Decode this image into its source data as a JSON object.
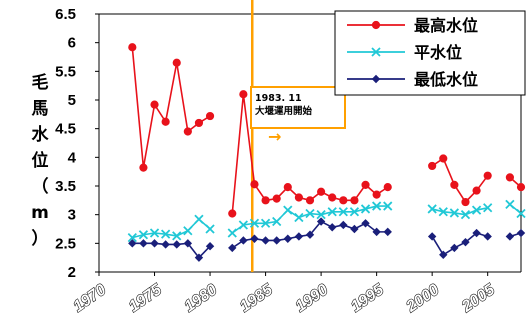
{
  "chart_data": {
    "type": "line",
    "title": "",
    "xlabel": "",
    "ylabel": "毛馬水位（m）",
    "ylim": [
      2,
      6.5
    ],
    "xlim": [
      1970,
      2008
    ],
    "y_ticks": [
      "2",
      "2.5",
      "3",
      "3.5",
      "4",
      "4.5",
      "5",
      "5.5",
      "6",
      "6.5"
    ],
    "x_ticks": [
      "1970",
      "1975",
      "1980",
      "1985",
      "1990",
      "1995",
      "2000",
      "2005"
    ],
    "grid": false,
    "legend_position": "top-right",
    "series": [
      {
        "name": "最高水位",
        "color": "#e8121b",
        "marker": "circle",
        "points": [
          [
            1973,
            5.92
          ],
          [
            1974,
            3.82
          ],
          [
            1975,
            4.92
          ],
          [
            1976,
            4.62
          ],
          [
            1977,
            5.65
          ],
          [
            1978,
            4.45
          ],
          [
            1979,
            4.6
          ],
          [
            1980,
            4.72
          ],
          null,
          [
            1982,
            3.02
          ],
          [
            1983,
            5.1
          ],
          [
            1984,
            3.53
          ],
          [
            1985,
            3.25
          ],
          [
            1986,
            3.28
          ],
          [
            1987,
            3.48
          ],
          [
            1988,
            3.3
          ],
          [
            1989,
            3.25
          ],
          [
            1990,
            3.4
          ],
          [
            1991,
            3.3
          ],
          [
            1992,
            3.25
          ],
          [
            1993,
            3.25
          ],
          [
            1994,
            3.52
          ],
          [
            1995,
            3.35
          ],
          [
            1996,
            3.48
          ],
          null,
          [
            2000,
            3.85
          ],
          [
            2001,
            3.98
          ],
          [
            2002,
            3.52
          ],
          [
            2003,
            3.22
          ],
          [
            2004,
            3.42
          ],
          [
            2005,
            3.68
          ],
          null,
          [
            2007,
            3.65
          ],
          [
            2008,
            3.48
          ]
        ]
      },
      {
        "name": "平水位",
        "color": "#21c8d6",
        "marker": "x",
        "points": [
          [
            1973,
            2.6
          ],
          [
            1974,
            2.65
          ],
          [
            1975,
            2.68
          ],
          [
            1976,
            2.66
          ],
          [
            1977,
            2.63
          ],
          [
            1978,
            2.72
          ],
          [
            1979,
            2.92
          ],
          [
            1980,
            2.75
          ],
          null,
          [
            1982,
            2.68
          ],
          [
            1983,
            2.82
          ],
          [
            1984,
            2.85
          ],
          [
            1985,
            2.85
          ],
          [
            1986,
            2.88
          ],
          [
            1987,
            3.08
          ],
          [
            1988,
            2.95
          ],
          [
            1989,
            3.02
          ],
          [
            1990,
            3.0
          ],
          [
            1991,
            3.05
          ],
          [
            1992,
            3.05
          ],
          [
            1993,
            3.05
          ],
          [
            1994,
            3.1
          ],
          [
            1995,
            3.15
          ],
          [
            1996,
            3.15
          ],
          null,
          [
            2000,
            3.1
          ],
          [
            2001,
            3.05
          ],
          [
            2002,
            3.03
          ],
          [
            2003,
            3.0
          ],
          [
            2004,
            3.08
          ],
          [
            2005,
            3.12
          ],
          null,
          [
            2007,
            3.18
          ],
          [
            2008,
            3.02
          ]
        ]
      },
      {
        "name": "最低水位",
        "color": "#1a1f7a",
        "marker": "diamond",
        "points": [
          [
            1973,
            2.5
          ],
          [
            1974,
            2.5
          ],
          [
            1975,
            2.5
          ],
          [
            1976,
            2.48
          ],
          [
            1977,
            2.48
          ],
          [
            1978,
            2.5
          ],
          [
            1979,
            2.25
          ],
          [
            1980,
            2.45
          ],
          null,
          [
            1982,
            2.42
          ],
          [
            1983,
            2.55
          ],
          [
            1984,
            2.58
          ],
          [
            1985,
            2.55
          ],
          [
            1986,
            2.55
          ],
          [
            1987,
            2.58
          ],
          [
            1988,
            2.62
          ],
          [
            1989,
            2.65
          ],
          [
            1990,
            2.88
          ],
          [
            1991,
            2.78
          ],
          [
            1992,
            2.82
          ],
          [
            1993,
            2.75
          ],
          [
            1994,
            2.85
          ],
          [
            1995,
            2.7
          ],
          [
            1996,
            2.7
          ],
          null,
          [
            2000,
            2.62
          ],
          [
            2001,
            2.3
          ],
          [
            2002,
            2.42
          ],
          [
            2003,
            2.52
          ],
          [
            2004,
            2.68
          ],
          [
            2005,
            2.62
          ],
          null,
          [
            2007,
            2.62
          ],
          [
            2008,
            2.68
          ]
        ]
      }
    ],
    "annotation": {
      "x": 1983.8,
      "line_color": "#ffa000",
      "lines": [
        "1983. 11",
        "大堰運用開始"
      ],
      "arrow": "→"
    }
  }
}
